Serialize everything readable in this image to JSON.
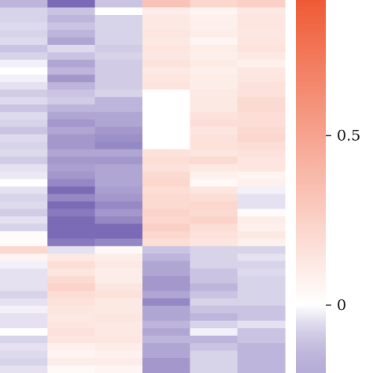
{
  "chart_data": {
    "type": "heatmap",
    "title": "",
    "xlabel": "",
    "ylabel": "",
    "columns": 6,
    "colorbar": {
      "colors": {
        "low": "#7b6bb6",
        "mid": "#ffffff",
        "high": "#ef5a35"
      },
      "range": [
        -0.2,
        0.9
      ],
      "ticks": [
        {
          "value": 0.5,
          "label": "0.5"
        },
        {
          "value": 0,
          "label": "0"
        }
      ]
    },
    "rows": [
      [
        -0.1,
        -0.22,
        -0.08,
        0.32,
        0.22,
        0.25
      ],
      [
        -0.06,
        -0.08,
        0.0,
        0.1,
        0.06,
        0.12
      ],
      [
        -0.06,
        -0.1,
        -0.06,
        0.12,
        0.08,
        0.14
      ],
      [
        -0.05,
        -0.08,
        -0.06,
        0.12,
        0.09,
        0.14
      ],
      [
        -0.06,
        -0.1,
        -0.06,
        0.14,
        0.1,
        0.13
      ],
      [
        -0.05,
        -0.12,
        -0.06,
        0.12,
        0.06,
        0.14
      ],
      [
        -0.08,
        -0.05,
        -0.07,
        0.14,
        0.1,
        0.15
      ],
      [
        -0.06,
        -0.08,
        -0.06,
        0.13,
        0.09,
        0.12
      ],
      [
        -0.02,
        -0.12,
        -0.07,
        0.15,
        0.11,
        0.08
      ],
      [
        0.0,
        -0.1,
        -0.07,
        0.12,
        0.09,
        0.13
      ],
      [
        -0.02,
        -0.14,
        -0.07,
        0.14,
        0.1,
        0.14
      ],
      [
        -0.04,
        -0.1,
        -0.07,
        0.15,
        0.1,
        0.16
      ],
      [
        -0.07,
        -0.08,
        -0.06,
        0.0,
        0.12,
        0.16
      ],
      [
        -0.05,
        -0.07,
        -0.1,
        0.0,
        0.12,
        0.2
      ],
      [
        -0.08,
        -0.1,
        -0.1,
        0.0,
        0.12,
        0.2
      ],
      [
        -0.05,
        -0.12,
        -0.12,
        0.0,
        0.16,
        0.18
      ],
      [
        -0.06,
        -0.14,
        -0.12,
        0.0,
        0.18,
        0.18
      ],
      [
        -0.08,
        -0.12,
        -0.14,
        0.0,
        0.14,
        0.2
      ],
      [
        -0.05,
        -0.14,
        -0.15,
        0.0,
        0.16,
        0.22
      ],
      [
        -0.06,
        -0.14,
        -0.16,
        0.0,
        0.16,
        0.18
      ],
      [
        -0.05,
        -0.12,
        -0.12,
        0.16,
        0.14,
        0.16
      ],
      [
        -0.07,
        -0.14,
        -0.14,
        0.18,
        0.2,
        0.14
      ],
      [
        -0.04,
        -0.13,
        -0.12,
        0.16,
        0.12,
        0.14
      ],
      [
        -0.03,
        -0.14,
        -0.12,
        0.2,
        0.08,
        0.06
      ],
      [
        0.0,
        -0.16,
        -0.12,
        0.22,
        0.04,
        0.08
      ],
      [
        -0.04,
        -0.2,
        -0.13,
        0.18,
        0.14,
        -0.02
      ],
      [
        -0.06,
        -0.16,
        -0.14,
        0.2,
        0.18,
        -0.04
      ],
      [
        -0.05,
        -0.2,
        -0.16,
        0.2,
        0.22,
        -0.04
      ],
      [
        -0.07,
        -0.18,
        -0.14,
        0.24,
        0.2,
        0.02
      ],
      [
        -0.04,
        -0.2,
        -0.16,
        0.22,
        0.24,
        0.1
      ],
      [
        -0.06,
        -0.22,
        -0.2,
        0.26,
        0.18,
        0.08
      ],
      [
        0.02,
        -0.24,
        -0.3,
        0.22,
        0.16,
        0.12
      ],
      [
        0.02,
        -0.18,
        -0.16,
        0.18,
        0.14,
        0.08
      ],
      [
        0.22,
        -0.04,
        0.04,
        -0.08,
        -0.06,
        -0.06
      ],
      [
        0.06,
        0.12,
        0.1,
        -0.1,
        -0.06,
        -0.04
      ],
      [
        -0.02,
        0.18,
        0.12,
        -0.12,
        -0.06,
        -0.06
      ],
      [
        -0.04,
        0.14,
        0.1,
        -0.12,
        -0.08,
        -0.05
      ],
      [
        -0.04,
        0.2,
        0.1,
        -0.14,
        -0.08,
        -0.06
      ],
      [
        -0.04,
        0.24,
        0.14,
        -0.14,
        -0.1,
        -0.06
      ],
      [
        -0.06,
        0.18,
        0.16,
        -0.12,
        -0.08,
        -0.06
      ],
      [
        -0.04,
        0.16,
        0.12,
        -0.16,
        -0.06,
        -0.06
      ],
      [
        -0.02,
        0.14,
        0.12,
        -0.12,
        -0.08,
        -0.08
      ],
      [
        -0.04,
        0.12,
        0.14,
        -0.12,
        -0.1,
        -0.08
      ],
      [
        -0.04,
        0.14,
        0.12,
        -0.1,
        -0.06,
        -0.04
      ],
      [
        0.0,
        0.16,
        0.12,
        -0.12,
        -0.02,
        -0.08
      ],
      [
        -0.06,
        0.14,
        0.14,
        -0.1,
        -0.1,
        -0.08
      ],
      [
        -0.04,
        0.08,
        0.1,
        -0.12,
        -0.08,
        -0.1
      ],
      [
        -0.05,
        0.06,
        0.08,
        -0.12,
        -0.06,
        -0.1
      ],
      [
        -0.06,
        0.1,
        0.1,
        -0.14,
        -0.06,
        -0.1
      ],
      [
        -0.04,
        0.04,
        0.06,
        -0.14,
        -0.06,
        -0.1
      ]
    ]
  }
}
